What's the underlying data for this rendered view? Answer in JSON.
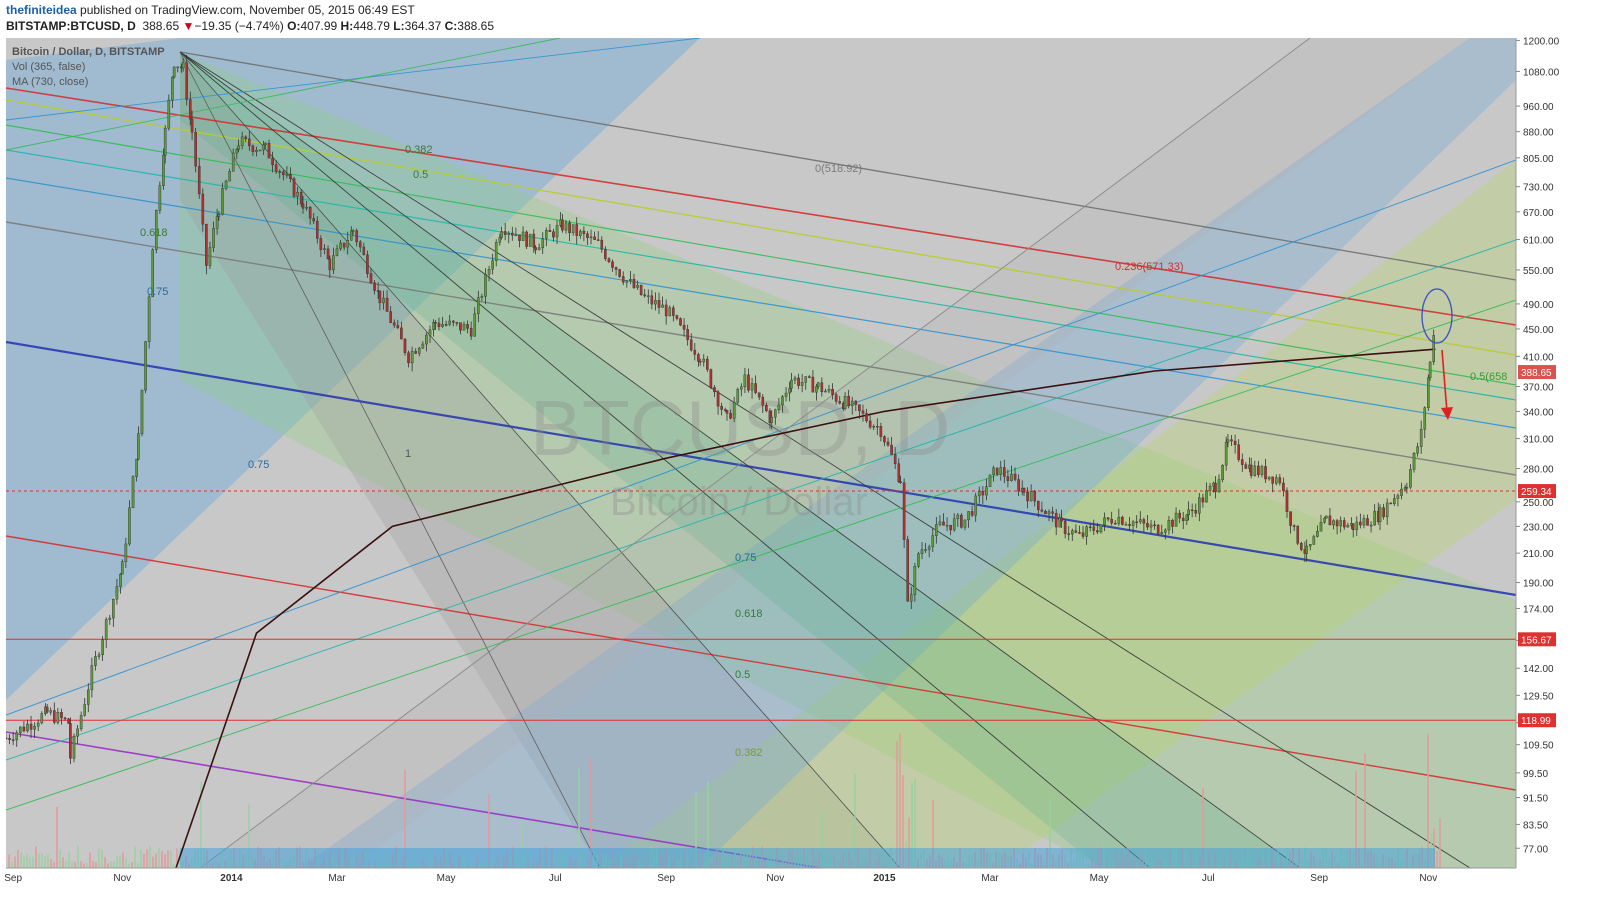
{
  "header": {
    "author": "thefiniteidea",
    "published": "published on TradingView.com, November 05, 2015 06:49 EST",
    "symbol": "BITSTAMP:BTCUSD, D",
    "last": "388.65",
    "change_arrow": "▼",
    "change": "−19.35 (−4.74%)",
    "open_label": "O:",
    "open": "407.99",
    "high_label": "H:",
    "high": "448.79",
    "low_label": "L:",
    "low": "364.37",
    "close_label": "C:",
    "close": "388.65"
  },
  "legend": {
    "title": "Bitcoin / Dollar, D, BITSTAMP",
    "vol": "Vol (365, false)",
    "ma": "MA (730, close)"
  },
  "watermark": {
    "big": "BTCUSD, D",
    "small": "Bitcoin / Dollar"
  },
  "price_tags": [
    {
      "value": 388.65,
      "text": "388.65",
      "color": "#d9534f"
    },
    {
      "value": 259.34,
      "text": "259.34",
      "color": "#e03030"
    },
    {
      "value": 156.67,
      "text": "156.67",
      "color": "#e03030"
    },
    {
      "value": 118.99,
      "text": "118.99",
      "color": "#e03030"
    }
  ],
  "fib_labels": [
    {
      "text": "0(518.92)"
    },
    {
      "text": "0.236(571.33)"
    },
    {
      "text": "0.5(658"
    },
    {
      "text": "0.382"
    },
    {
      "text": "0.5"
    },
    {
      "text": "0.618"
    },
    {
      "text": "0.75"
    },
    {
      "text": "1"
    }
  ],
  "chart_data": {
    "type": "candlestick",
    "title": "Bitcoin / Dollar, D, BITSTAMP",
    "scale": "log",
    "ylim": [
      72,
      1210
    ],
    "y_ticks": [
      "1200.00",
      "1080.00",
      "960.00",
      "880.00",
      "805.00",
      "730.00",
      "670.00",
      "610.00",
      "550.00",
      "490.00",
      "450.00",
      "410.00",
      "370.00",
      "340.00",
      "310.00",
      "280.00",
      "250.00",
      "230.00",
      "210.00",
      "190.00",
      "174.00",
      "156.00",
      "142.00",
      "129.50",
      "118.00",
      "109.50",
      "99.50",
      "91.50",
      "83.50",
      "77.00"
    ],
    "x_ticks": [
      "Sep",
      "Nov",
      "2014",
      "Mar",
      "May",
      "Jul",
      "Sep",
      "Nov",
      "2015",
      "Mar",
      "May",
      "Jul",
      "Sep",
      "Nov"
    ],
    "x_range": [
      "2013-08-28",
      "2015-12-20"
    ],
    "price_path": [
      [
        "2013-08-28",
        112
      ],
      [
        "2013-09-20",
        122
      ],
      [
        "2013-10-02",
        118
      ],
      [
        "2013-10-03",
        105
      ],
      [
        "2013-10-15",
        140
      ],
      [
        "2013-11-01",
        200
      ],
      [
        "2013-11-10",
        310
      ],
      [
        "2013-11-18",
        600
      ],
      [
        "2013-11-25",
        880
      ],
      [
        "2013-11-30",
        1120
      ],
      [
        "2013-12-05",
        1090
      ],
      [
        "2013-12-10",
        880
      ],
      [
        "2013-12-18",
        560
      ],
      [
        "2013-12-25",
        680
      ],
      [
        "2014-01-05",
        850
      ],
      [
        "2014-01-20",
        830
      ],
      [
        "2014-02-10",
        690
      ],
      [
        "2014-02-25",
        560
      ],
      [
        "2014-03-10",
        630
      ],
      [
        "2014-03-25",
        500
      ],
      [
        "2014-04-10",
        410
      ],
      [
        "2014-04-25",
        460
      ],
      [
        "2014-05-15",
        450
      ],
      [
        "2014-06-01",
        640
      ],
      [
        "2014-06-20",
        600
      ],
      [
        "2014-07-05",
        640
      ],
      [
        "2014-07-25",
        600
      ],
      [
        "2014-08-10",
        530
      ],
      [
        "2014-08-20",
        500
      ],
      [
        "2014-09-01",
        480
      ],
      [
        "2014-09-20",
        410
      ],
      [
        "2014-10-05",
        330
      ],
      [
        "2014-10-15",
        380
      ],
      [
        "2014-10-30",
        330
      ],
      [
        "2014-11-10",
        380
      ],
      [
        "2014-11-25",
        370
      ],
      [
        "2014-12-10",
        350
      ],
      [
        "2014-12-30",
        320
      ],
      [
        "2015-01-10",
        270
      ],
      [
        "2015-01-14",
        175
      ],
      [
        "2015-01-20",
        210
      ],
      [
        "2015-02-01",
        230
      ],
      [
        "2015-02-15",
        235
      ],
      [
        "2015-03-05",
        280
      ],
      [
        "2015-03-20",
        260
      ],
      [
        "2015-04-10",
        230
      ],
      [
        "2015-04-20",
        222
      ],
      [
        "2015-05-10",
        238
      ],
      [
        "2015-06-01",
        228
      ],
      [
        "2015-06-20",
        240
      ],
      [
        "2015-07-05",
        265
      ],
      [
        "2015-07-12",
        305
      ],
      [
        "2015-07-25",
        280
      ],
      [
        "2015-08-10",
        270
      ],
      [
        "2015-08-18",
        225
      ],
      [
        "2015-08-25",
        210
      ],
      [
        "2015-09-05",
        235
      ],
      [
        "2015-09-20",
        230
      ],
      [
        "2015-10-05",
        240
      ],
      [
        "2015-10-20",
        268
      ],
      [
        "2015-10-28",
        315
      ],
      [
        "2015-11-02",
        400
      ],
      [
        "2015-11-04",
        448
      ],
      [
        "2015-11-05",
        389
      ]
    ],
    "series": [
      {
        "name": "MA (730, close)",
        "points": [
          [
            "2013-12-01",
            72
          ],
          [
            "2014-01-15",
            160
          ],
          [
            "2014-04-01",
            230
          ],
          [
            "2014-09-01",
            290
          ],
          [
            "2015-01-01",
            340
          ],
          [
            "2015-06-01",
            390
          ],
          [
            "2015-11-05",
            420
          ]
        ]
      }
    ]
  }
}
